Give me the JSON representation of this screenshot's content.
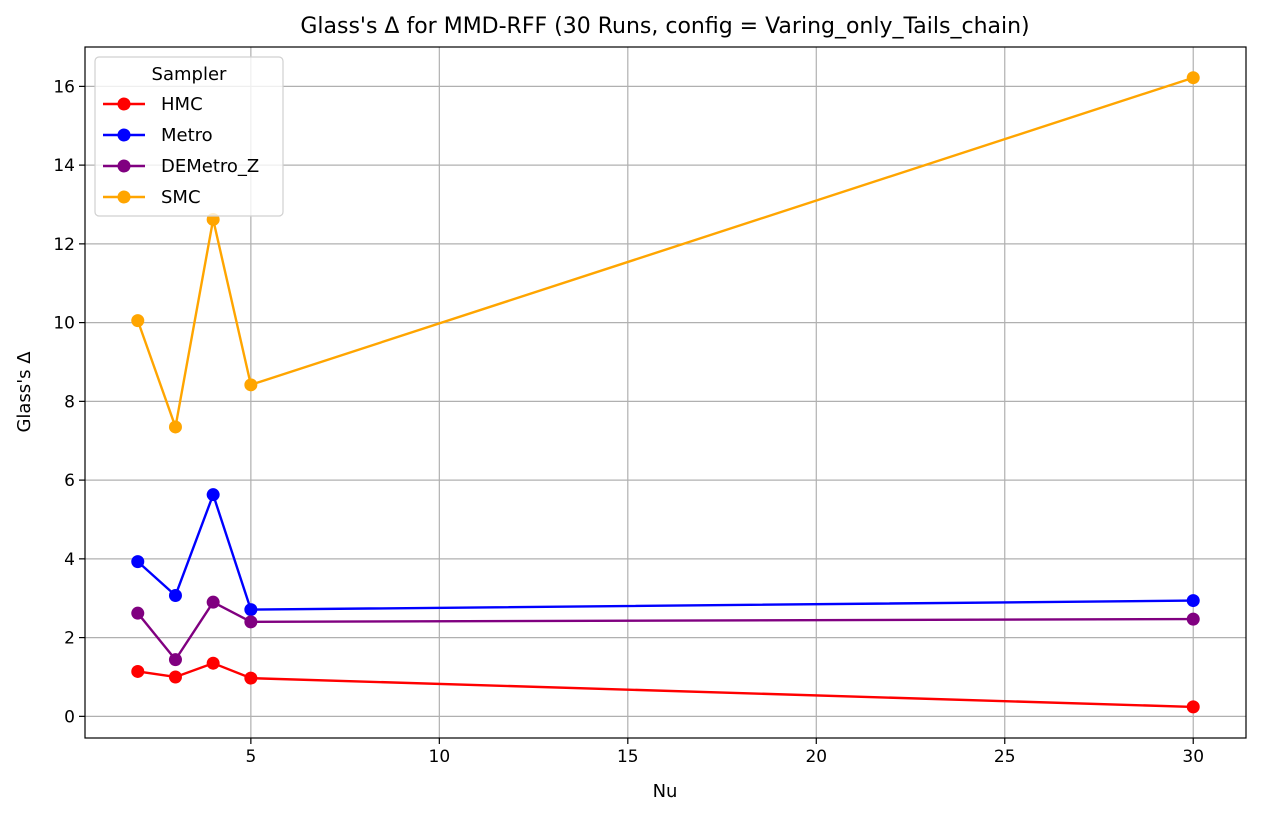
{
  "chart_data": {
    "type": "line",
    "title": "Glass's Δ for MMD-RFF (30 Runs, config = Varing_only_Tails_chain)",
    "xlabel": "Nu",
    "ylabel": "Glass's Δ",
    "xlim": [
      0.6,
      31.4
    ],
    "ylim": [
      -0.55,
      17.0
    ],
    "xticks": [
      5,
      10,
      15,
      20,
      25,
      30
    ],
    "yticks": [
      0,
      2,
      4,
      6,
      8,
      10,
      12,
      14,
      16
    ],
    "grid": true,
    "legend": {
      "title": "Sampler",
      "placement": "top-left"
    },
    "x": [
      2,
      3,
      4,
      5,
      30
    ],
    "series": [
      {
        "name": "HMC",
        "color": "#ff0000",
        "values": [
          1.14,
          1.0,
          1.35,
          0.97,
          0.24
        ]
      },
      {
        "name": "Metro",
        "color": "#0000ff",
        "values": [
          3.93,
          3.07,
          5.63,
          2.71,
          2.94
        ]
      },
      {
        "name": "DEMetro_Z",
        "color": "#800080",
        "values": [
          2.62,
          1.44,
          2.9,
          2.4,
          2.47
        ]
      },
      {
        "name": "SMC",
        "color": "#ffa500",
        "values": [
          10.05,
          7.35,
          12.62,
          8.42,
          16.22
        ]
      }
    ]
  }
}
